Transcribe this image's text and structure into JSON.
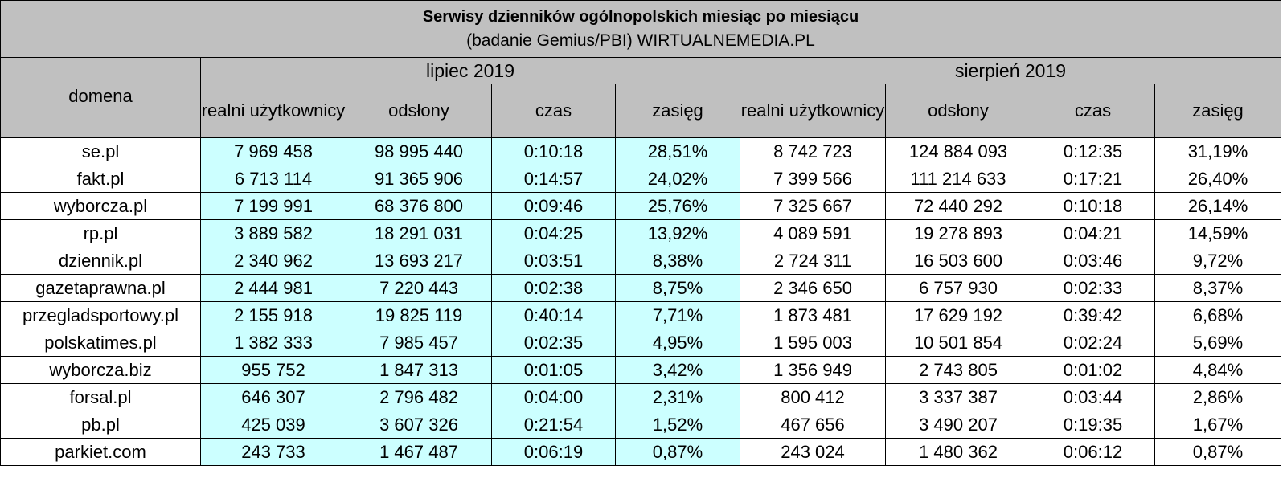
{
  "title": "Serwisy dzienników ogólnopolskich miesiąc po miesiącu",
  "subtitle": "(badanie Gemius/PBI) WIRTUALNEMEDIA.PL",
  "domain_header": "domena",
  "months": [
    "lipiec 2019",
    "sierpień 2019"
  ],
  "columns": [
    "realni użytkownicy",
    "odsłony",
    "czas",
    "zasięg"
  ],
  "colors": {
    "header_bg": "#c0c0c0",
    "highlight_bg": "#ccffff",
    "cell_bg": "#ffffff"
  },
  "rows": [
    {
      "domain": "se.pl",
      "jul": [
        "7 969 458",
        "98 995 440",
        "0:10:18",
        "28,51%"
      ],
      "aug": [
        "8 742 723",
        "124 884 093",
        "0:12:35",
        "31,19%"
      ]
    },
    {
      "domain": "fakt.pl",
      "jul": [
        "6 713 114",
        "91 365 906",
        "0:14:57",
        "24,02%"
      ],
      "aug": [
        "7 399 566",
        "111 214 633",
        "0:17:21",
        "26,40%"
      ]
    },
    {
      "domain": "wyborcza.pl",
      "jul": [
        "7 199 991",
        "68 376 800",
        "0:09:46",
        "25,76%"
      ],
      "aug": [
        "7 325 667",
        "72 440 292",
        "0:10:18",
        "26,14%"
      ]
    },
    {
      "domain": "rp.pl",
      "jul": [
        "3 889 582",
        "18 291 031",
        "0:04:25",
        "13,92%"
      ],
      "aug": [
        "4 089 591",
        "19 278 893",
        "0:04:21",
        "14,59%"
      ]
    },
    {
      "domain": "dziennik.pl",
      "jul": [
        "2 340 962",
        "13 693 217",
        "0:03:51",
        "8,38%"
      ],
      "aug": [
        "2 724 311",
        "16 503 600",
        "0:03:46",
        "9,72%"
      ]
    },
    {
      "domain": "gazetaprawna.pl",
      "jul": [
        "2 444 981",
        "7 220 443",
        "0:02:38",
        "8,75%"
      ],
      "aug": [
        "2 346 650",
        "6 757 930",
        "0:02:33",
        "8,37%"
      ]
    },
    {
      "domain": "przegladsportowy.pl",
      "jul": [
        "2 155 918",
        "19 825 119",
        "0:40:14",
        "7,71%"
      ],
      "aug": [
        "1 873 481",
        "17 629 192",
        "0:39:42",
        "6,68%"
      ]
    },
    {
      "domain": "polskatimes.pl",
      "jul": [
        "1 382 333",
        "7 985 457",
        "0:02:35",
        "4,95%"
      ],
      "aug": [
        "1 595 003",
        "10 501 854",
        "0:02:24",
        "5,69%"
      ]
    },
    {
      "domain": "wyborcza.biz",
      "jul": [
        "955 752",
        "1 847 313",
        "0:01:05",
        "3,42%"
      ],
      "aug": [
        "1 356 949",
        "2 743 805",
        "0:01:02",
        "4,84%"
      ]
    },
    {
      "domain": "forsal.pl",
      "jul": [
        "646 307",
        "2 796 482",
        "0:04:00",
        "2,31%"
      ],
      "aug": [
        "800 412",
        "3 337 387",
        "0:03:44",
        "2,86%"
      ]
    },
    {
      "domain": "pb.pl",
      "jul": [
        "425 039",
        "3 607 326",
        "0:21:54",
        "1,52%"
      ],
      "aug": [
        "467 656",
        "3 490 207",
        "0:19:35",
        "1,67%"
      ]
    },
    {
      "domain": "parkiet.com",
      "jul": [
        "243 733",
        "1 467 487",
        "0:06:19",
        "0,87%"
      ],
      "aug": [
        "243 024",
        "1 480 362",
        "0:06:12",
        "0,87%"
      ]
    }
  ]
}
